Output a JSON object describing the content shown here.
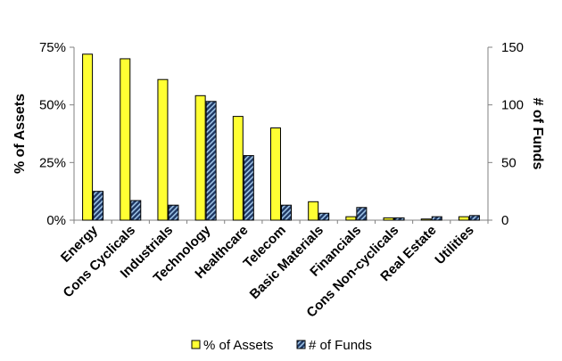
{
  "chart_data": {
    "type": "bar",
    "categories": [
      "Energy",
      "Cons Cyclicals",
      "Industrials",
      "Technology",
      "Healthcare",
      "Telecom",
      "Basic Materials",
      "Financials",
      "Cons Non-cyclicals",
      "Real Estate",
      "Utilities"
    ],
    "series": [
      {
        "name": "% of Assets",
        "axis": "left",
        "color": "#ffff33",
        "values": [
          72,
          70,
          61,
          54,
          45,
          40,
          8,
          1.5,
          1,
          0.5,
          1.5
        ]
      },
      {
        "name": "# of Funds",
        "axis": "right",
        "color": "#1f3864",
        "pattern": "hatched-light-blue",
        "values": [
          25,
          17,
          13,
          103,
          56,
          13,
          6,
          11,
          2,
          3,
          4
        ]
      }
    ],
    "ylabel_left": "% of Assets",
    "ylabel_right": "# of Funds",
    "ylim_left": [
      0,
      75
    ],
    "ylim_right": [
      0,
      150
    ],
    "yticks_left": [
      "0%",
      "25%",
      "50%",
      "75%"
    ],
    "yticks_right": [
      "0",
      "50",
      "100",
      "150"
    ],
    "yticks_left_values": [
      0,
      25,
      50,
      75
    ],
    "yticks_right_values": [
      0,
      50,
      100,
      150
    ],
    "legend_position": "bottom",
    "grid": false
  }
}
